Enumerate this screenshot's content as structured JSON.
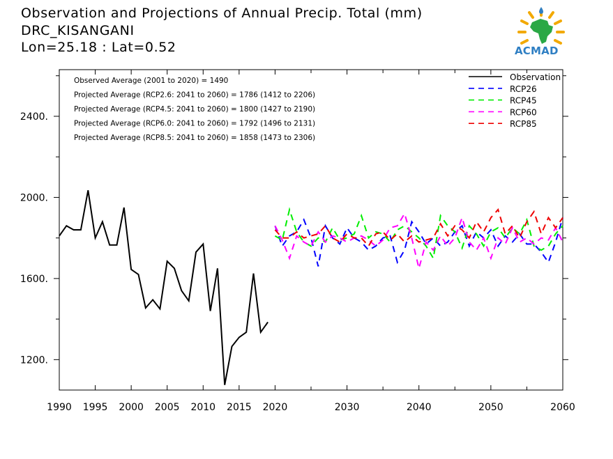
{
  "header": {
    "title": "Observation and Projections of Annual Precip. Total (mm)",
    "location": "DRC_KISANGANI",
    "coords": "Lon=25.18 : Lat=0.52"
  },
  "logo": {
    "text": "ACMAD"
  },
  "stats": [
    "Observed Average (2001 to 2020) = 1490",
    "Projected Average (RCP2.6: 2041 to 2060) = 1786 (1412 to 2206)",
    "Projected Average (RCP4.5: 2041 to 2060) = 1800 (1427 to 2190)",
    "Projected Average (RCP6.0: 2041 to 2060) = 1792 (1496 to 2131)",
    "Projected Average (RCP8.5: 2041 to 2060) = 1858 (1473 to 2306)"
  ],
  "chart_data": {
    "type": "line",
    "title": "Observation and Projections of Annual Precip. Total (mm)",
    "xlim": [
      1990,
      2060
    ],
    "ylim": [
      1050,
      2630
    ],
    "x_ticks": [
      1990,
      1995,
      2000,
      2005,
      2010,
      2015,
      2020,
      2030,
      2040,
      2050,
      2060
    ],
    "y_ticks": [
      1200,
      1600,
      2000,
      2400
    ],
    "y_tick_labels": [
      "1200.",
      "1600.",
      "2000.",
      "2400."
    ],
    "legend_position": "top-right",
    "series": [
      {
        "name": "Observation",
        "color": "#000000",
        "dash": "solid",
        "x": [
          1990,
          1991,
          1992,
          1993,
          1994,
          1995,
          1996,
          1997,
          1998,
          1999,
          2000,
          2001,
          2002,
          2003,
          2004,
          2005,
          2006,
          2007,
          2008,
          2009,
          2010,
          2011,
          2012,
          2013,
          2014,
          2015,
          2016,
          2017,
          2018,
          2019
        ],
        "y": [
          1810,
          1860,
          1840,
          1840,
          2035,
          1800,
          1880,
          1765,
          1765,
          1950,
          1645,
          1620,
          1455,
          1495,
          1450,
          1685,
          1650,
          1540,
          1490,
          1730,
          1770,
          1440,
          1650,
          1075,
          1265,
          1310,
          1335,
          1625,
          1335,
          1385
        ]
      },
      {
        "name": "RCP26",
        "color": "#0000ff",
        "dash": "dashed",
        "x": [
          2020,
          2021,
          2022,
          2023,
          2024,
          2025,
          2026,
          2027,
          2028,
          2029,
          2030,
          2031,
          2032,
          2033,
          2034,
          2035,
          2036,
          2037,
          2038,
          2039,
          2040,
          2041,
          2042,
          2043,
          2044,
          2045,
          2046,
          2047,
          2048,
          2049,
          2050,
          2051,
          2052,
          2053,
          2054,
          2055,
          2056,
          2057,
          2058,
          2059,
          2060
        ],
        "y": [
          1860,
          1760,
          1810,
          1830,
          1890,
          1800,
          1660,
          1860,
          1800,
          1770,
          1850,
          1800,
          1780,
          1740,
          1760,
          1800,
          1810,
          1680,
          1740,
          1880,
          1830,
          1770,
          1800,
          1760,
          1780,
          1830,
          1860,
          1760,
          1830,
          1800,
          1840,
          1760,
          1810,
          1780,
          1820,
          1770,
          1770,
          1730,
          1680,
          1780,
          1900
        ]
      },
      {
        "name": "RCP45",
        "color": "#00ee00",
        "dash": "dashed",
        "x": [
          2020,
          2021,
          2022,
          2023,
          2024,
          2025,
          2026,
          2027,
          2028,
          2029,
          2030,
          2031,
          2032,
          2033,
          2034,
          2035,
          2036,
          2037,
          2038,
          2039,
          2040,
          2041,
          2042,
          2043,
          2044,
          2045,
          2046,
          2047,
          2048,
          2049,
          2050,
          2051,
          2052,
          2053,
          2054,
          2055,
          2056,
          2057,
          2058,
          2059,
          2060
        ],
        "y": [
          1810,
          1790,
          1940,
          1830,
          1780,
          1760,
          1800,
          1780,
          1850,
          1790,
          1800,
          1820,
          1910,
          1800,
          1830,
          1820,
          1780,
          1840,
          1860,
          1830,
          1800,
          1760,
          1700,
          1910,
          1860,
          1830,
          1750,
          1860,
          1820,
          1760,
          1830,
          1850,
          1800,
          1850,
          1820,
          1890,
          1760,
          1740,
          1760,
          1820,
          1860
        ]
      },
      {
        "name": "RCP60",
        "color": "#ff00ff",
        "dash": "dashed",
        "x": [
          2020,
          2021,
          2022,
          2023,
          2024,
          2025,
          2026,
          2027,
          2028,
          2029,
          2030,
          2031,
          2032,
          2033,
          2034,
          2035,
          2036,
          2037,
          2038,
          2039,
          2040,
          2041,
          2042,
          2043,
          2044,
          2045,
          2046,
          2047,
          2048,
          2049,
          2050,
          2051,
          2052,
          2053,
          2054,
          2055,
          2056,
          2057,
          2058,
          2059,
          2060
        ],
        "y": [
          1860,
          1790,
          1700,
          1810,
          1780,
          1760,
          1830,
          1780,
          1810,
          1800,
          1780,
          1800,
          1810,
          1790,
          1760,
          1790,
          1850,
          1860,
          1920,
          1800,
          1650,
          1780,
          1740,
          1810,
          1760,
          1800,
          1900,
          1780,
          1740,
          1800,
          1700,
          1800,
          1770,
          1850,
          1780,
          1800,
          1770,
          1800,
          1790,
          1850,
          1780
        ]
      },
      {
        "name": "RCP85",
        "color": "#ee0000",
        "dash": "dashed",
        "x": [
          2020,
          2021,
          2022,
          2023,
          2024,
          2025,
          2026,
          2027,
          2028,
          2029,
          2030,
          2031,
          2032,
          2033,
          2034,
          2035,
          2036,
          2037,
          2038,
          2039,
          2040,
          2041,
          2042,
          2043,
          2044,
          2045,
          2046,
          2047,
          2048,
          2049,
          2050,
          2051,
          2052,
          2053,
          2054,
          2055,
          2056,
          2057,
          2058,
          2059,
          2060
        ],
        "y": [
          1840,
          1800,
          1800,
          1830,
          1800,
          1810,
          1820,
          1860,
          1800,
          1780,
          1820,
          1800,
          1800,
          1760,
          1820,
          1830,
          1790,
          1820,
          1780,
          1810,
          1780,
          1790,
          1800,
          1870,
          1810,
          1860,
          1840,
          1800,
          1880,
          1830,
          1900,
          1940,
          1820,
          1860,
          1800,
          1880,
          1930,
          1820,
          1900,
          1850,
          1900
        ]
      }
    ]
  }
}
